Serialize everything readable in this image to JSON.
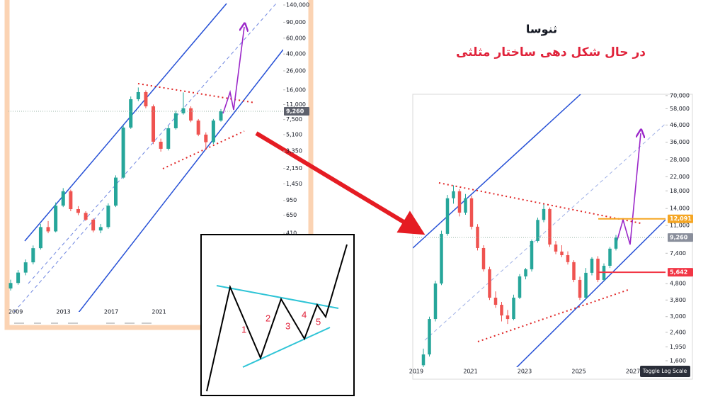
{
  "header": {
    "title": "ثنوسا",
    "subtitle": "در حال شکل دهی ساختار مثلثی"
  },
  "chart_data": [
    {
      "type": "candlestick",
      "log_scale": true,
      "up_color": "#26a69a",
      "down_color": "#ef5350",
      "ylim": [
        55,
        159000
      ],
      "yticks": [
        410,
        650,
        950,
        {
          "value": 1450,
          "label": "1,450"
        },
        {
          "value": 2150,
          "label": "2,150"
        },
        {
          "value": 3350,
          "label": "3,350"
        },
        {
          "value": 5100,
          "label": "5,100"
        },
        {
          "value": 7500,
          "label": "7,500"
        },
        {
          "value": 11000,
          "label": "11,000"
        },
        {
          "value": 16000,
          "label": "16,000"
        },
        {
          "value": 26000,
          "label": "26,000"
        },
        {
          "value": 40000,
          "label": "40,000"
        },
        {
          "value": 60000,
          "label": "60,000"
        },
        {
          "value": 90000,
          "label": "90,000"
        },
        {
          "value": 140000,
          "label": "140,000"
        }
      ],
      "xlim": [
        2008.4,
        2031.4
      ],
      "xticks": [
        2009,
        2013,
        2017,
        2021
      ],
      "levels": [
        {
          "value": 9260,
          "label": "9,260",
          "color": "#5d606b"
        }
      ],
      "candles": [
        [
          100,
          125,
          95,
          115
        ],
        [
          115,
          160,
          110,
          150
        ],
        [
          150,
          210,
          140,
          195
        ],
        [
          195,
          300,
          185,
          280
        ],
        [
          280,
          520,
          270,
          480
        ],
        [
          480,
          560,
          410,
          430
        ],
        [
          430,
          900,
          420,
          830
        ],
        [
          830,
          1300,
          800,
          1200
        ],
        [
          1200,
          1250,
          720,
          760
        ],
        [
          760,
          820,
          650,
          690
        ],
        [
          690,
          720,
          560,
          580
        ],
        [
          580,
          600,
          420,
          440
        ],
        [
          440,
          520,
          410,
          480
        ],
        [
          480,
          880,
          460,
          830
        ],
        [
          830,
          1800,
          800,
          1700
        ],
        [
          1700,
          6500,
          1650,
          6100
        ],
        [
          6100,
          13500,
          5900,
          12600
        ],
        [
          12600,
          17000,
          12000,
          15100
        ],
        [
          15100,
          15800,
          10000,
          10500
        ],
        [
          10500,
          11000,
          4000,
          4250
        ],
        [
          4250,
          4600,
          3300,
          3550
        ],
        [
          3550,
          6400,
          3400,
          6000
        ],
        [
          6000,
          9400,
          5800,
          8800
        ],
        [
          8800,
          15000,
          8500,
          10000
        ],
        [
          10000,
          10500,
          7000,
          7300
        ],
        [
          7300,
          7600,
          4900,
          5100
        ],
        [
          5100,
          5400,
          3500,
          4200
        ],
        [
          4200,
          7600,
          4000,
          7300
        ],
        [
          7300,
          9800,
          7100,
          9260
        ]
      ]
    },
    {
      "type": "candlestick",
      "log_scale": true,
      "up_color": "#26a69a",
      "down_color": "#ef5350",
      "ylim": [
        1320,
        71300
      ],
      "yticks": [
        {
          "value": 1600,
          "label": "1,600"
        },
        {
          "value": 1950,
          "label": "1,950"
        },
        {
          "value": 2400,
          "label": "2,400"
        },
        {
          "value": 3000,
          "label": "3,000"
        },
        {
          "value": 3800,
          "label": "3,800"
        },
        {
          "value": 4800,
          "label": "4,800"
        },
        {
          "value": 7400,
          "label": "7,400"
        },
        {
          "value": 11000,
          "label": "11,000"
        },
        {
          "value": 14000,
          "label": "14,000"
        },
        {
          "value": 18000,
          "label": "18,000"
        },
        {
          "value": 22000,
          "label": "22,000"
        },
        {
          "value": 28000,
          "label": "28,000"
        },
        {
          "value": 36000,
          "label": "36,000"
        },
        {
          "value": 46000,
          "label": "46,000"
        },
        {
          "value": 58000,
          "label": "58,000"
        },
        {
          "value": 70000,
          "label": "70,000"
        }
      ],
      "xlim": [
        2018.87,
        2028.2
      ],
      "xticks": [
        2019,
        2021,
        2023,
        2025,
        2027
      ],
      "levels": [
        {
          "value": 12091,
          "label": "12,091",
          "color": "#f5a623"
        },
        {
          "value": 9260,
          "label": "9,260",
          "color": "#8a8f9c"
        },
        {
          "value": 5642,
          "label": "5,642",
          "color": "#f23645"
        }
      ],
      "candles": [
        [
          1500,
          1900,
          1400,
          1750
        ],
        [
          1750,
          3000,
          1700,
          2900
        ],
        [
          2900,
          5000,
          2800,
          4810
        ],
        [
          4810,
          10200,
          4700,
          9760
        ],
        [
          9760,
          17000,
          9500,
          16200
        ],
        [
          16200,
          19500,
          15000,
          17900
        ],
        [
          17900,
          18500,
          12500,
          13200
        ],
        [
          13200,
          17200,
          12800,
          16200
        ],
        [
          16200,
          16800,
          10400,
          10800
        ],
        [
          10800,
          11200,
          7700,
          7970
        ],
        [
          7970,
          8300,
          5700,
          5890
        ],
        [
          5890,
          6100,
          3800,
          3930
        ],
        [
          3930,
          4300,
          3400,
          3550
        ],
        [
          3550,
          3700,
          2800,
          3050
        ],
        [
          3050,
          3300,
          2700,
          2900
        ],
        [
          2900,
          4100,
          2850,
          3930
        ],
        [
          3930,
          5500,
          3850,
          5320
        ],
        [
          5320,
          6000,
          5100,
          5890
        ],
        [
          5890,
          9000,
          5700,
          8810
        ],
        [
          8810,
          12300,
          8600,
          11900
        ],
        [
          11900,
          14800,
          11500,
          13900
        ],
        [
          13900,
          14200,
          8100,
          8380
        ],
        [
          8380,
          8800,
          7300,
          7580
        ],
        [
          7580,
          8300,
          7000,
          7200
        ],
        [
          7200,
          7600,
          6300,
          6520
        ],
        [
          6520,
          6700,
          4900,
          5060
        ],
        [
          5060,
          5300,
          3800,
          3930
        ],
        [
          3930,
          6000,
          3850,
          5600
        ],
        [
          5600,
          7000,
          5400,
          6850
        ],
        [
          6850,
          7100,
          4900,
          5060
        ],
        [
          5060,
          6400,
          5000,
          6190
        ],
        [
          6190,
          8100,
          6000,
          7900
        ],
        [
          7900,
          9600,
          7700,
          9260
        ]
      ]
    }
  ],
  "diagram": {
    "labels": [
      "1",
      "2",
      "3",
      "4",
      "5"
    ]
  },
  "ui": {
    "button": "Toggle Log Scale"
  }
}
